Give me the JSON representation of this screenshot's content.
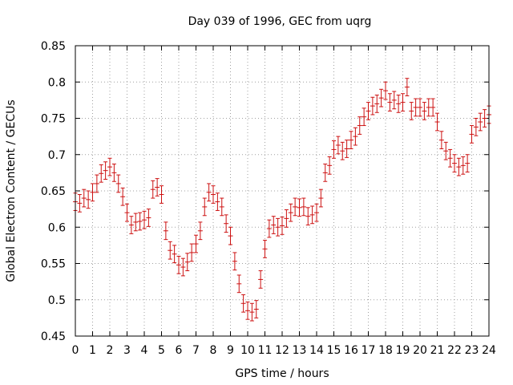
{
  "chart_data": {
    "type": "scatter",
    "title": "Day 039 of 1996, GEC from uqrg",
    "xlabel": "GPS time / hours",
    "ylabel": "Global Electron Content / GECUs",
    "xlim": [
      0,
      24
    ],
    "ylim": [
      0.45,
      0.85
    ],
    "xticks": [
      0,
      1,
      2,
      3,
      4,
      5,
      6,
      7,
      8,
      9,
      10,
      11,
      12,
      13,
      14,
      15,
      16,
      17,
      18,
      19,
      20,
      21,
      22,
      23,
      24
    ],
    "yticks": [
      0.45,
      0.5,
      0.55,
      0.6,
      0.65,
      0.7,
      0.75,
      0.8,
      0.85
    ],
    "grid": true,
    "legend": "none",
    "color": "#cc1111",
    "error": 0.012,
    "series": [
      {
        "x": [
          0,
          0.25,
          0.5,
          0.75,
          1,
          1.25,
          1.5,
          1.75,
          2,
          2.25,
          2.5,
          2.75,
          3,
          3.25,
          3.5,
          3.75,
          4,
          4.25,
          4.5,
          4.75,
          5,
          5.25,
          5.5,
          5.75,
          6,
          6.25,
          6.5,
          6.75,
          7,
          7.25,
          7.5,
          7.75,
          8,
          8.25,
          8.5,
          8.75,
          9,
          9.25,
          9.5,
          9.75,
          10,
          10.25,
          10.5,
          10.75,
          11,
          11.25,
          11.5,
          11.75,
          12,
          12.25,
          12.5,
          12.75,
          13,
          13.25,
          13.5,
          13.75,
          14,
          14.25,
          14.5,
          14.75,
          15,
          15.25,
          15.5,
          15.75,
          16,
          16.25,
          16.5,
          16.75,
          17,
          17.25,
          17.5,
          17.75,
          18,
          18.25,
          18.5,
          18.75,
          19,
          19.25,
          19.5,
          19.75,
          20,
          20.25,
          20.5,
          20.75,
          21,
          21.25,
          21.5,
          21.75,
          22,
          22.25,
          22.5,
          22.75,
          23,
          23.25,
          23.5,
          23.75,
          24
        ],
        "y": [
          0.635,
          0.633,
          0.64,
          0.638,
          0.648,
          0.66,
          0.674,
          0.678,
          0.683,
          0.675,
          0.66,
          0.642,
          0.62,
          0.603,
          0.607,
          0.608,
          0.61,
          0.613,
          0.652,
          0.655,
          0.645,
          0.595,
          0.568,
          0.563,
          0.548,
          0.545,
          0.552,
          0.565,
          0.577,
          0.595,
          0.628,
          0.648,
          0.645,
          0.635,
          0.628,
          0.605,
          0.588,
          0.553,
          0.522,
          0.495,
          0.485,
          0.483,
          0.487,
          0.528,
          0.57,
          0.598,
          0.603,
          0.6,
          0.602,
          0.612,
          0.62,
          0.628,
          0.627,
          0.628,
          0.615,
          0.617,
          0.62,
          0.64,
          0.675,
          0.685,
          0.707,
          0.713,
          0.705,
          0.708,
          0.72,
          0.725,
          0.74,
          0.752,
          0.76,
          0.767,
          0.77,
          0.778,
          0.788,
          0.772,
          0.775,
          0.77,
          0.772,
          0.793,
          0.76,
          0.765,
          0.765,
          0.76,
          0.765,
          0.765,
          0.745,
          0.72,
          0.705,
          0.695,
          0.688,
          0.683,
          0.685,
          0.688,
          0.728,
          0.738,
          0.745,
          0.75,
          0.755
        ]
      }
    ]
  }
}
